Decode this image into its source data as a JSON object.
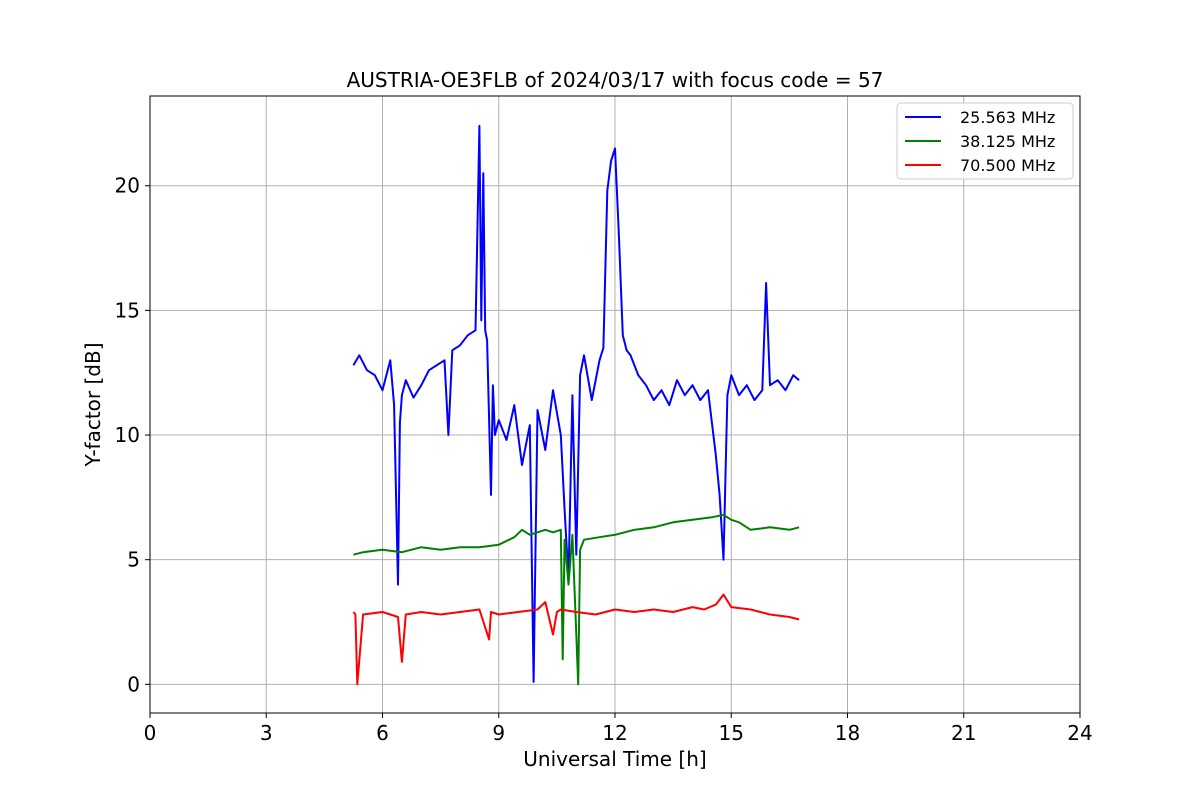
{
  "chart_data": {
    "type": "line",
    "title": "AUSTRIA-OE3FLB of 2024/03/17 with focus code = 57",
    "xlabel": "Universal Time [h]",
    "ylabel": "Y-factor [dB]",
    "xlim": [
      0,
      24
    ],
    "ylim": [
      -1.15,
      23.6
    ],
    "xticks": [
      0,
      3,
      6,
      9,
      12,
      15,
      18,
      21,
      24
    ],
    "yticks": [
      0,
      5,
      10,
      15,
      20
    ],
    "grid": true,
    "legend_position": "top-right",
    "series": [
      {
        "name": "25.563 MHz",
        "color": "#0000ff",
        "x": [
          5.25,
          5.4,
          5.6,
          5.8,
          6.0,
          6.2,
          6.3,
          6.4,
          6.45,
          6.5,
          6.6,
          6.8,
          7.0,
          7.2,
          7.4,
          7.6,
          7.7,
          7.8,
          8.0,
          8.2,
          8.4,
          8.5,
          8.55,
          8.6,
          8.65,
          8.7,
          8.8,
          8.85,
          8.9,
          9.0,
          9.2,
          9.4,
          9.6,
          9.8,
          9.9,
          10.0,
          10.1,
          10.2,
          10.4,
          10.6,
          10.7,
          10.8,
          10.9,
          11.0,
          11.1,
          11.2,
          11.4,
          11.6,
          11.7,
          11.8,
          11.9,
          12.0,
          12.1,
          12.2,
          12.3,
          12.4,
          12.6,
          12.8,
          13.0,
          13.2,
          13.4,
          13.6,
          13.8,
          14.0,
          14.2,
          14.4,
          14.6,
          14.7,
          14.8,
          14.9,
          15.0,
          15.2,
          15.4,
          15.6,
          15.8,
          15.9,
          16.0,
          16.2,
          16.4,
          16.6,
          16.75
        ],
        "y": [
          12.8,
          13.2,
          12.6,
          12.4,
          11.8,
          13.0,
          11.2,
          4.0,
          10.5,
          11.6,
          12.2,
          11.5,
          12.0,
          12.6,
          12.8,
          13.0,
          10.0,
          13.4,
          13.6,
          14.0,
          14.2,
          22.4,
          14.6,
          20.5,
          14.2,
          13.8,
          7.6,
          12.0,
          10.0,
          10.6,
          9.8,
          11.2,
          8.8,
          10.4,
          0.1,
          11.0,
          10.2,
          9.4,
          11.8,
          10.0,
          7.0,
          4.2,
          11.6,
          5.2,
          12.4,
          13.2,
          11.4,
          13.0,
          13.5,
          19.8,
          21.0,
          21.5,
          18.0,
          14.0,
          13.4,
          13.2,
          12.4,
          12.0,
          11.4,
          11.8,
          11.2,
          12.2,
          11.6,
          12.0,
          11.4,
          11.8,
          9.2,
          7.6,
          5.0,
          11.6,
          12.4,
          11.6,
          12.0,
          11.4,
          11.8,
          16.1,
          12.0,
          12.2,
          11.8,
          12.4,
          12.2
        ]
      },
      {
        "name": "38.125 MHz",
        "color": "#008000",
        "x": [
          5.25,
          5.5,
          6.0,
          6.5,
          7.0,
          7.5,
          8.0,
          8.5,
          9.0,
          9.4,
          9.6,
          9.8,
          10.0,
          10.2,
          10.4,
          10.6,
          10.65,
          10.7,
          10.8,
          10.9,
          11.0,
          11.05,
          11.1,
          11.2,
          11.6,
          12.0,
          12.5,
          13.0,
          13.5,
          14.0,
          14.5,
          14.8,
          15.0,
          15.2,
          15.5,
          16.0,
          16.5,
          16.75
        ],
        "y": [
          5.2,
          5.3,
          5.4,
          5.3,
          5.5,
          5.4,
          5.5,
          5.5,
          5.6,
          5.9,
          6.2,
          6.0,
          6.1,
          6.2,
          6.1,
          6.2,
          1.0,
          5.8,
          4.0,
          6.0,
          2.0,
          0.0,
          5.4,
          5.8,
          5.9,
          6.0,
          6.2,
          6.3,
          6.5,
          6.6,
          6.7,
          6.8,
          6.6,
          6.5,
          6.2,
          6.3,
          6.2,
          6.3
        ]
      },
      {
        "name": "70.500 MHz",
        "color": "#ff0000",
        "x": [
          5.25,
          5.3,
          5.35,
          5.5,
          6.0,
          6.4,
          6.5,
          6.6,
          7.0,
          7.5,
          8.0,
          8.5,
          8.75,
          8.8,
          9.0,
          9.5,
          10.0,
          10.2,
          10.4,
          10.5,
          10.6,
          11.0,
          11.5,
          12.0,
          12.5,
          13.0,
          13.5,
          14.0,
          14.3,
          14.6,
          14.8,
          15.0,
          15.5,
          16.0,
          16.5,
          16.75
        ],
        "y": [
          2.9,
          2.8,
          0.0,
          2.8,
          2.9,
          2.7,
          0.9,
          2.8,
          2.9,
          2.8,
          2.9,
          3.0,
          1.8,
          2.9,
          2.8,
          2.9,
          3.0,
          3.3,
          2.0,
          2.9,
          3.0,
          2.9,
          2.8,
          3.0,
          2.9,
          3.0,
          2.9,
          3.1,
          3.0,
          3.2,
          3.6,
          3.1,
          3.0,
          2.8,
          2.7,
          2.6
        ]
      }
    ]
  }
}
